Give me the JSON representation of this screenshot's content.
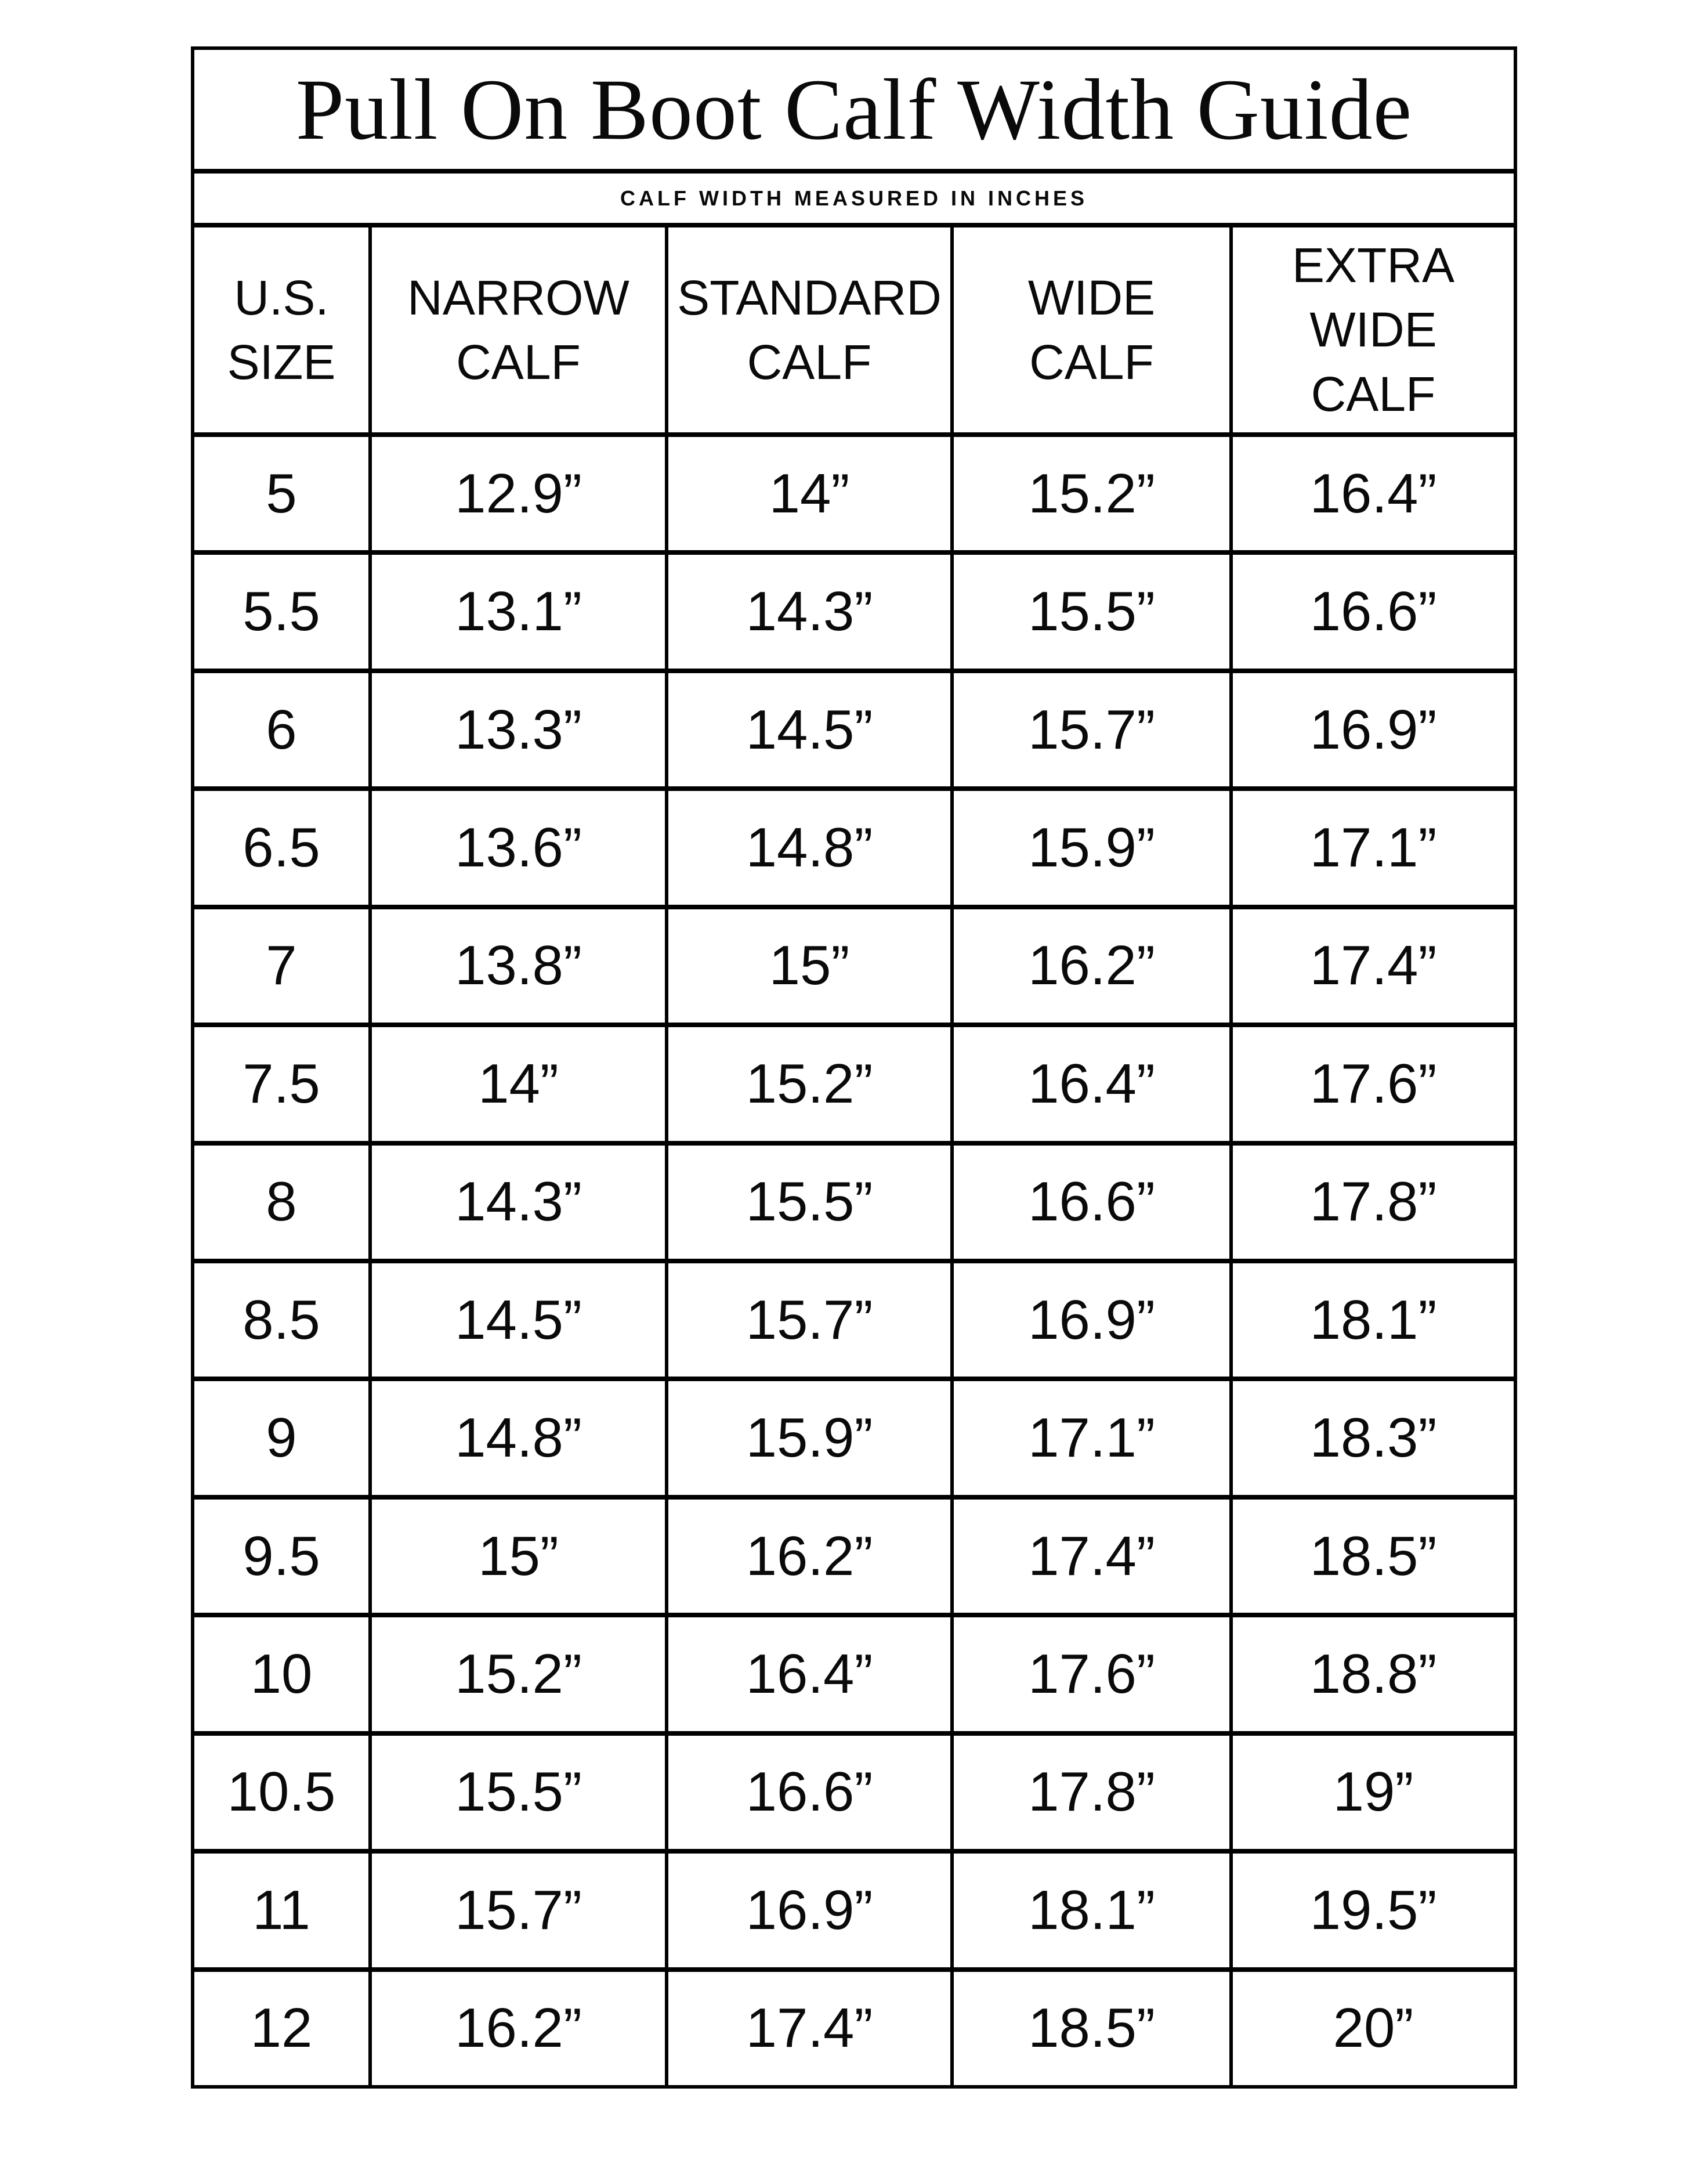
{
  "title": "Pull On Boot Calf Width Guide",
  "subtitle": "CALF WIDTH MEASURED IN INCHES",
  "colors": {
    "background": "#ffffff",
    "grid_lines": "#000000",
    "text": "#0a0a0a"
  },
  "table": {
    "headers": [
      {
        "line1": "U.S.",
        "line2": "SIZE"
      },
      {
        "line1": "NARROW",
        "line2": "CALF"
      },
      {
        "line1": "STANDARD",
        "line2": "CALF"
      },
      {
        "line1": "WIDE",
        "line2": "CALF"
      },
      {
        "line1": "EXTRA WIDE",
        "line2": "CALF"
      }
    ],
    "rows": [
      {
        "size": "5",
        "narrow": "12.9”",
        "standard": "14”",
        "wide": "15.2”",
        "extra_wide": "16.4”"
      },
      {
        "size": "5.5",
        "narrow": "13.1”",
        "standard": "14.3”",
        "wide": "15.5”",
        "extra_wide": "16.6”"
      },
      {
        "size": "6",
        "narrow": "13.3”",
        "standard": "14.5”",
        "wide": "15.7”",
        "extra_wide": "16.9”"
      },
      {
        "size": "6.5",
        "narrow": "13.6”",
        "standard": "14.8”",
        "wide": "15.9”",
        "extra_wide": "17.1”"
      },
      {
        "size": "7",
        "narrow": "13.8”",
        "standard": "15”",
        "wide": "16.2”",
        "extra_wide": "17.4”"
      },
      {
        "size": "7.5",
        "narrow": "14”",
        "standard": "15.2”",
        "wide": "16.4”",
        "extra_wide": "17.6”"
      },
      {
        "size": "8",
        "narrow": "14.3”",
        "standard": "15.5”",
        "wide": "16.6”",
        "extra_wide": "17.8”"
      },
      {
        "size": "8.5",
        "narrow": "14.5”",
        "standard": "15.7”",
        "wide": "16.9”",
        "extra_wide": "18.1”"
      },
      {
        "size": "9",
        "narrow": "14.8”",
        "standard": "15.9”",
        "wide": "17.1”",
        "extra_wide": "18.3”"
      },
      {
        "size": "9.5",
        "narrow": "15”",
        "standard": "16.2”",
        "wide": "17.4”",
        "extra_wide": "18.5”"
      },
      {
        "size": "10",
        "narrow": "15.2”",
        "standard": "16.4”",
        "wide": "17.6”",
        "extra_wide": "18.8”"
      },
      {
        "size": "10.5",
        "narrow": "15.5”",
        "standard": "16.6”",
        "wide": "17.8”",
        "extra_wide": "19”"
      },
      {
        "size": "11",
        "narrow": "15.7”",
        "standard": "16.9”",
        "wide": "18.1”",
        "extra_wide": "19.5”"
      },
      {
        "size": "12",
        "narrow": "16.2”",
        "standard": "17.4”",
        "wide": "18.5”",
        "extra_wide": "20”"
      }
    ]
  }
}
